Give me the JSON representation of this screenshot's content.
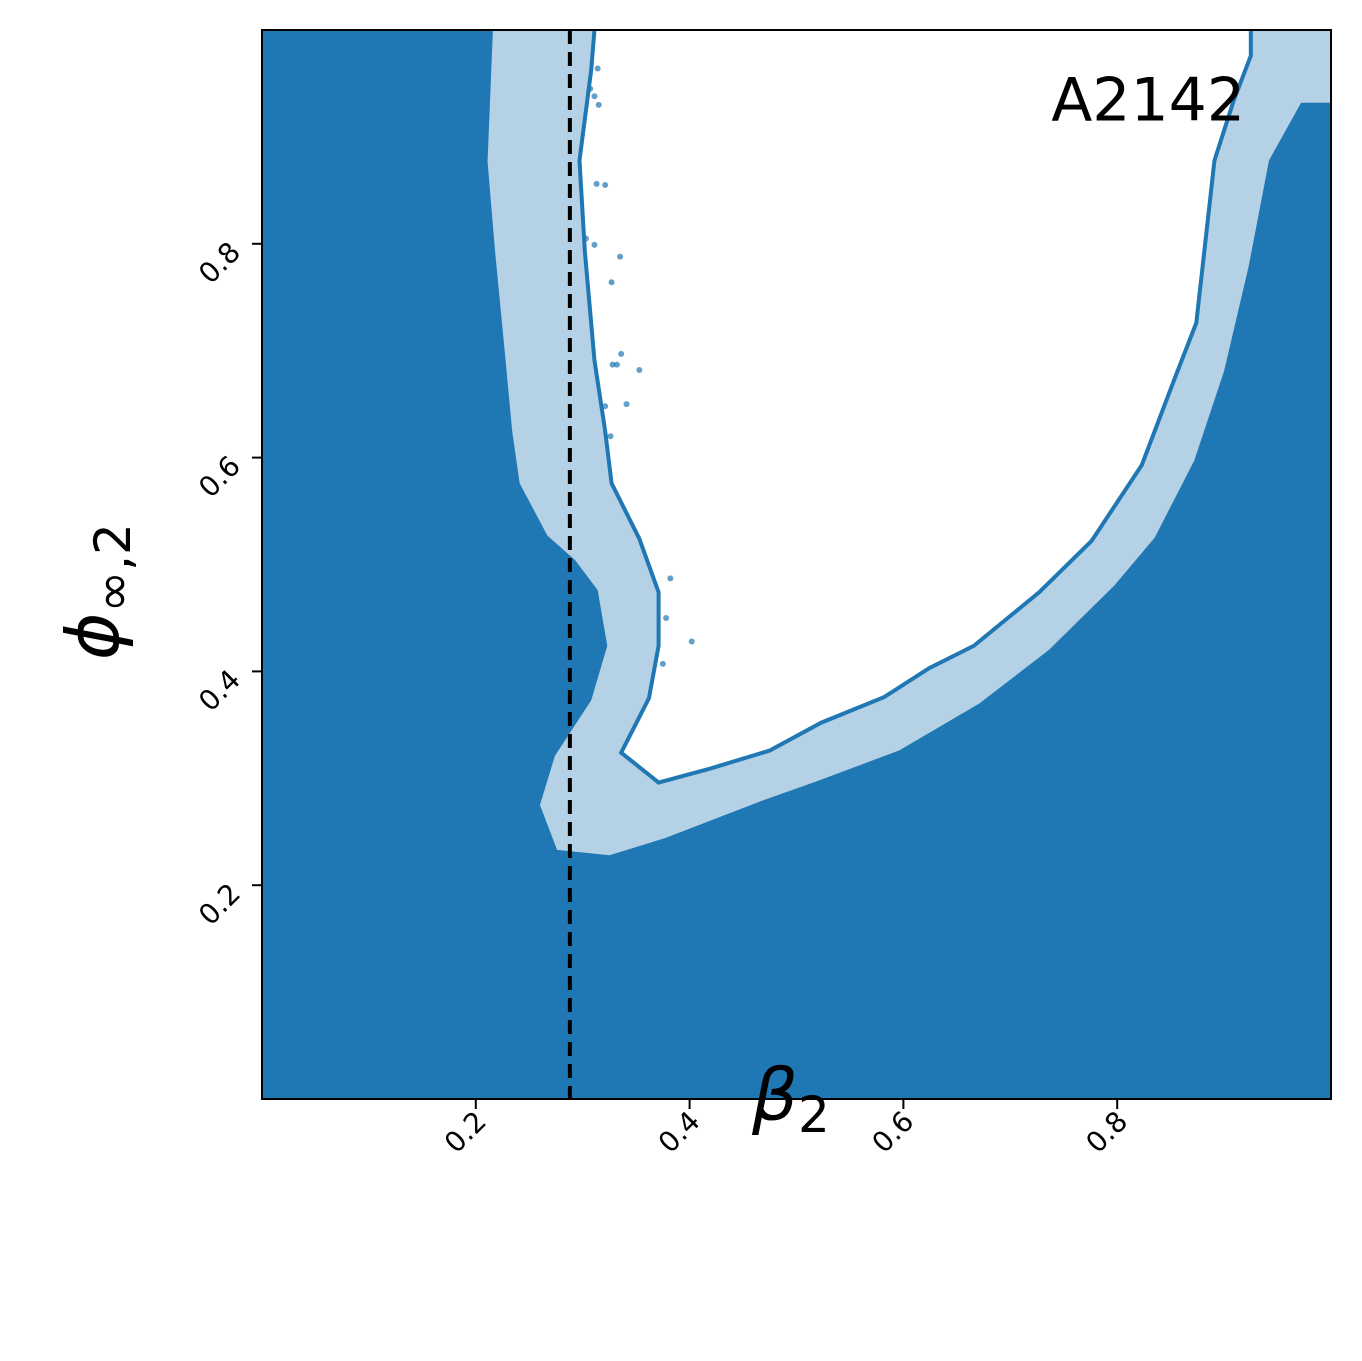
{
  "chart_data": {
    "type": "contour",
    "xlim": [
      0,
      1
    ],
    "ylim": [
      0,
      1
    ],
    "xticks": [
      0.2,
      0.4,
      0.6,
      0.8
    ],
    "yticks": [
      0.2,
      0.4,
      0.6,
      0.8
    ],
    "xlabel": "β",
    "xlabel_sub": "2",
    "ylabel": "ϕ",
    "ylabel_sub": "∞,2",
    "annotation": "A2142",
    "background_color": "#1f77b4",
    "vline": {
      "x": 0.288,
      "color": "#000000"
    },
    "regions": [
      {
        "color": "#b4d1e5",
        "x": [
          0.216,
          0.211,
          0.218,
          0.227,
          0.234,
          0.241,
          0.267,
          0.293,
          0.314,
          0.323,
          0.308,
          0.274,
          0.26,
          0.276,
          0.325,
          0.377,
          0.465,
          0.521,
          0.596,
          0.671,
          0.736,
          0.797,
          0.835,
          0.872,
          0.9,
          0.923,
          0.942,
          0.972,
          1.0,
          1.0
        ],
        "y": [
          1.0,
          0.877,
          0.793,
          0.7,
          0.625,
          0.576,
          0.527,
          0.504,
          0.476,
          0.424,
          0.373,
          0.321,
          0.275,
          0.233,
          0.228,
          0.244,
          0.278,
          0.298,
          0.326,
          0.37,
          0.42,
          0.48,
          0.525,
          0.597,
          0.681,
          0.779,
          0.878,
          0.932,
          0.932,
          1.0
        ]
      },
      {
        "color": "#ffffff",
        "x": [
          0.311,
          0.308,
          0.297,
          0.302,
          0.311,
          0.321,
          0.327,
          0.353,
          0.371,
          0.371,
          0.362,
          0.336,
          0.371,
          0.419,
          0.475,
          0.523,
          0.582,
          0.624,
          0.666,
          0.727,
          0.776,
          0.823,
          0.853,
          0.874,
          0.891,
          0.909,
          0.925,
          0.925
        ],
        "y": [
          1.0,
          0.963,
          0.878,
          0.793,
          0.691,
          0.625,
          0.576,
          0.524,
          0.474,
          0.424,
          0.375,
          0.324,
          0.296,
          0.309,
          0.326,
          0.352,
          0.376,
          0.403,
          0.424,
          0.474,
          0.522,
          0.593,
          0.672,
          0.726,
          0.878,
          0.934,
          0.976,
          1.0
        ]
      }
    ],
    "contour_line": {
      "color": "#1f77b4",
      "region": 1
    },
    "points": {
      "color": "#1f77b4",
      "x": [
        0.314,
        0.307,
        0.311,
        0.315,
        0.313,
        0.321,
        0.303,
        0.311,
        0.335,
        0.327,
        0.336,
        0.328,
        0.332,
        0.353,
        0.321,
        0.341,
        0.326,
        0.382,
        0.378,
        0.402,
        0.375
      ],
      "y": [
        0.964,
        0.945,
        0.938,
        0.93,
        0.856,
        0.855,
        0.805,
        0.799,
        0.788,
        0.764,
        0.697,
        0.687,
        0.687,
        0.682,
        0.648,
        0.65,
        0.62,
        0.487,
        0.45,
        0.428,
        0.407
      ]
    }
  }
}
